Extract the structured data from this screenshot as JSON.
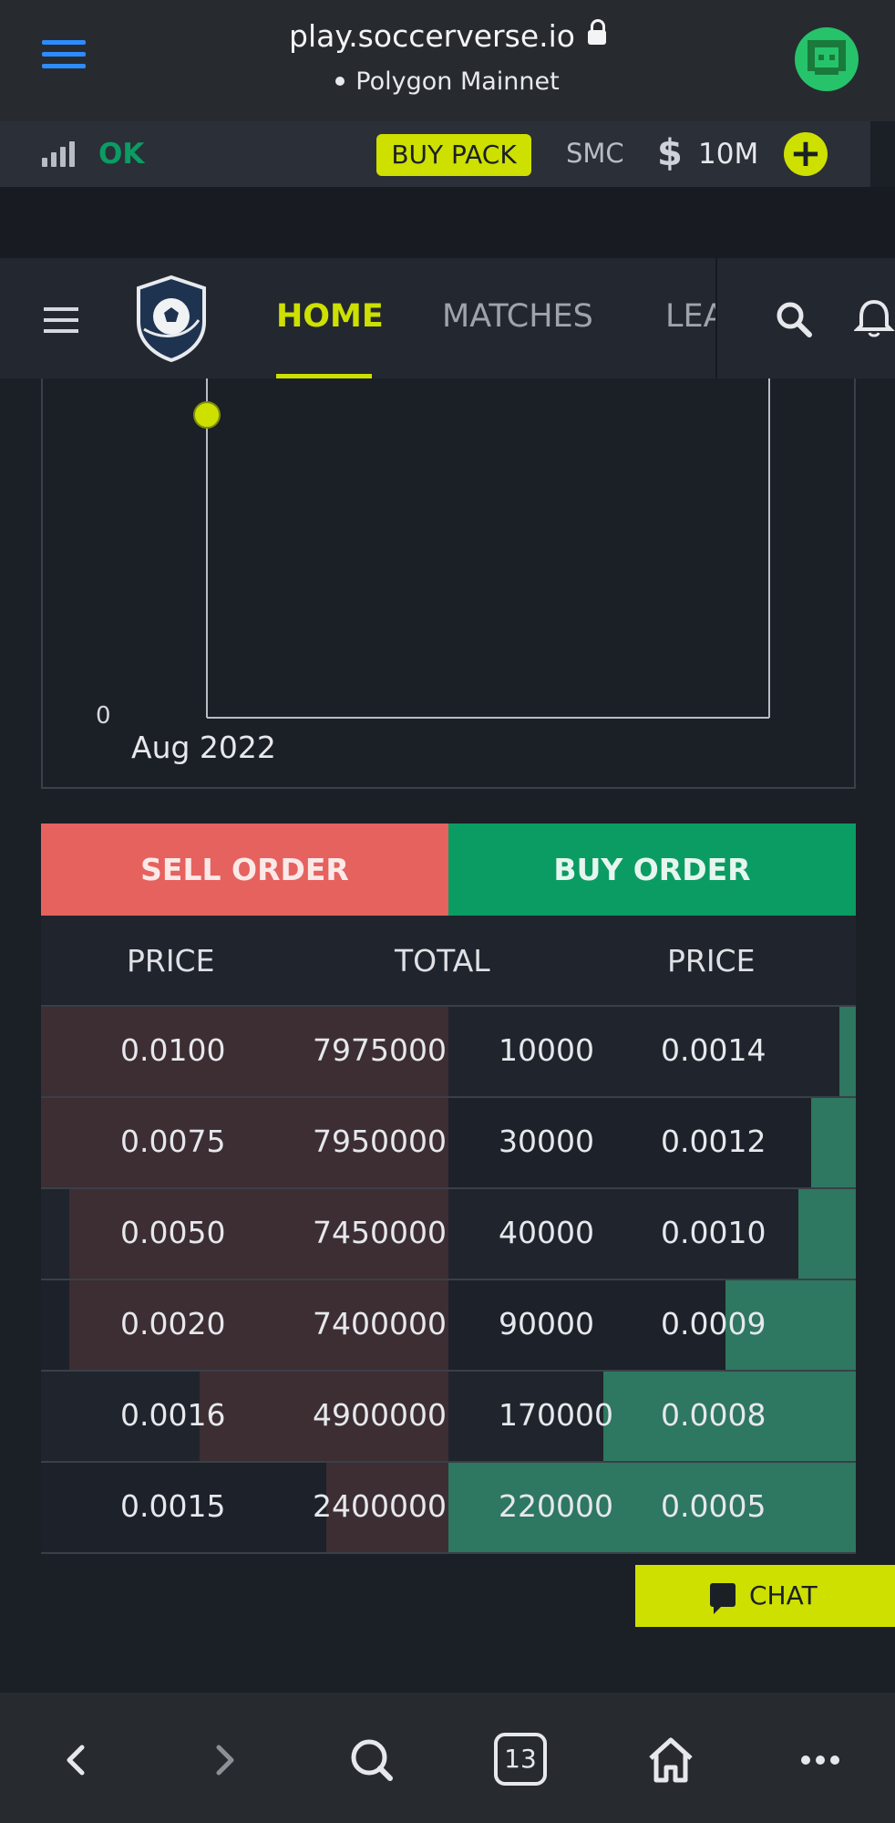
{
  "browser": {
    "url_host": "play.soccerverse.io",
    "network": "Polygon Mainnet"
  },
  "status": {
    "connection": "OK",
    "buy_pack_label": "BUY PACK",
    "currency_label": "SMC",
    "balance": "10M"
  },
  "nav": {
    "tabs": [
      "HOME",
      "MATCHES",
      "LEA"
    ],
    "active_tab": "HOME"
  },
  "chart_data": {
    "type": "line",
    "x_tick_label": "Aug 2022",
    "y_tick_label": "0",
    "points": [
      {
        "x": "Aug 2022"
      }
    ]
  },
  "orders": {
    "sell_label": "SELL ORDER",
    "buy_label": "BUY ORDER",
    "columns": [
      "PRICE",
      "TOTAL",
      "PRICE"
    ],
    "rows": [
      {
        "sell_price": "0.0100",
        "sell_total": "7975000",
        "buy_total": "10000",
        "buy_price": "0.0014",
        "sell_fill": 1.0,
        "buy_fill": 0.04
      },
      {
        "sell_price": "0.0075",
        "sell_total": "7950000",
        "buy_total": "30000",
        "buy_price": "0.0012",
        "sell_fill": 1.0,
        "buy_fill": 0.11
      },
      {
        "sell_price": "0.0050",
        "sell_total": "7450000",
        "buy_total": "40000",
        "buy_price": "0.0010",
        "sell_fill": 0.93,
        "buy_fill": 0.14
      },
      {
        "sell_price": "0.0020",
        "sell_total": "7400000",
        "buy_total": "90000",
        "buy_price": "0.0009",
        "sell_fill": 0.93,
        "buy_fill": 0.32
      },
      {
        "sell_price": "0.0016",
        "sell_total": "4900000",
        "buy_total": "170000",
        "buy_price": "0.0008",
        "sell_fill": 0.61,
        "buy_fill": 0.62
      },
      {
        "sell_price": "0.0015",
        "sell_total": "2400000",
        "buy_total": "220000",
        "buy_price": "0.0005",
        "sell_fill": 0.3,
        "buy_fill": 1.0
      }
    ]
  },
  "chat": {
    "label": "CHAT"
  },
  "bottom_nav": {
    "tab_count": "13"
  },
  "colors": {
    "accent": "#cde000",
    "sell": "#e5625e",
    "buy": "#0a9c63"
  }
}
